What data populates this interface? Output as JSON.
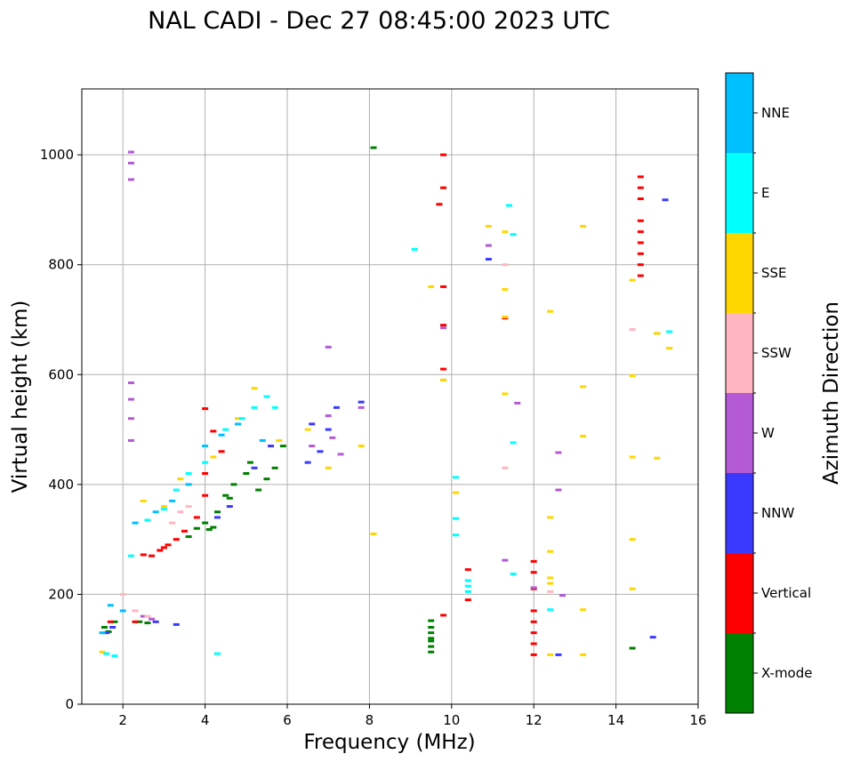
{
  "chart_data": {
    "type": "scatter",
    "title": "NAL CADI - Dec 27 08:45:00 2023 UTC",
    "xlabel": "Frequency (MHz)",
    "ylabel": "Virtual height (km)",
    "xlim": [
      1,
      16
    ],
    "ylim": [
      0,
      1120
    ],
    "xticks": [
      2,
      4,
      6,
      8,
      10,
      12,
      14,
      16
    ],
    "yticks": [
      0,
      200,
      400,
      600,
      800,
      1000
    ],
    "grid": true,
    "colorbar": {
      "label": "Azimuth Direction",
      "categories": [
        {
          "name": "X-mode",
          "color": "#008000"
        },
        {
          "name": "Vertical",
          "color": "#ff0000"
        },
        {
          "name": "NNW",
          "color": "#3a3aff"
        },
        {
          "name": "W",
          "color": "#b35ad4"
        },
        {
          "name": "SSW",
          "color": "#ffb6c1"
        },
        {
          "name": "SSE",
          "color": "#ffd700"
        },
        {
          "name": "E",
          "color": "#00ffff"
        },
        {
          "name": "NNE",
          "color": "#00bfff"
        }
      ]
    },
    "series": [
      {
        "name": "X-mode",
        "points": [
          [
            1.55,
            140
          ],
          [
            1.65,
            132
          ],
          [
            1.8,
            150
          ],
          [
            2.4,
            150
          ],
          [
            2.6,
            148
          ],
          [
            3.6,
            305
          ],
          [
            3.8,
            320
          ],
          [
            4.0,
            330
          ],
          [
            4.1,
            318
          ],
          [
            4.2,
            322
          ],
          [
            4.3,
            350
          ],
          [
            4.5,
            380
          ],
          [
            4.6,
            375
          ],
          [
            4.7,
            400
          ],
          [
            5.0,
            420
          ],
          [
            5.1,
            440
          ],
          [
            5.3,
            390
          ],
          [
            5.5,
            410
          ],
          [
            5.7,
            430
          ],
          [
            5.9,
            470
          ],
          [
            8.1,
            1013
          ],
          [
            9.5,
            95
          ],
          [
            9.5,
            105
          ],
          [
            9.5,
            115
          ],
          [
            9.5,
            120
          ],
          [
            9.5,
            130
          ],
          [
            9.5,
            140
          ],
          [
            9.5,
            152
          ],
          [
            14.4,
            102
          ],
          [
            15.0,
            675
          ]
        ]
      },
      {
        "name": "Vertical",
        "points": [
          [
            1.7,
            150
          ],
          [
            2.3,
            150
          ],
          [
            2.5,
            272
          ],
          [
            2.7,
            270
          ],
          [
            2.9,
            280
          ],
          [
            3.0,
            285
          ],
          [
            3.1,
            290
          ],
          [
            3.3,
            300
          ],
          [
            3.5,
            315
          ],
          [
            3.8,
            340
          ],
          [
            4.0,
            380
          ],
          [
            4.0,
            420
          ],
          [
            4.0,
            538
          ],
          [
            4.2,
            497
          ],
          [
            4.4,
            460
          ],
          [
            9.8,
            1000
          ],
          [
            9.8,
            940
          ],
          [
            9.7,
            910
          ],
          [
            9.8,
            760
          ],
          [
            9.8,
            690
          ],
          [
            9.8,
            610
          ],
          [
            9.8,
            590
          ],
          [
            9.8,
            162
          ],
          [
            10.4,
            190
          ],
          [
            10.4,
            245
          ],
          [
            11.3,
            703
          ],
          [
            12.0,
            90
          ],
          [
            12.0,
            110
          ],
          [
            12.0,
            130
          ],
          [
            12.0,
            150
          ],
          [
            12.0,
            170
          ],
          [
            12.0,
            210
          ],
          [
            12.0,
            240
          ],
          [
            12.0,
            260
          ],
          [
            14.6,
            780
          ],
          [
            14.6,
            800
          ],
          [
            14.6,
            820
          ],
          [
            14.6,
            840
          ],
          [
            14.6,
            860
          ],
          [
            14.6,
            880
          ],
          [
            14.6,
            920
          ],
          [
            14.6,
            940
          ],
          [
            14.6,
            960
          ]
        ]
      },
      {
        "name": "NNW",
        "points": [
          [
            1.6,
            130
          ],
          [
            1.75,
            140
          ],
          [
            2.8,
            150
          ],
          [
            3.3,
            145
          ],
          [
            4.3,
            340
          ],
          [
            4.6,
            360
          ],
          [
            5.2,
            430
          ],
          [
            5.6,
            470
          ],
          [
            6.5,
            440
          ],
          [
            6.6,
            510
          ],
          [
            6.8,
            460
          ],
          [
            7.0,
            500
          ],
          [
            7.2,
            540
          ],
          [
            7.8,
            550
          ],
          [
            10.9,
            810
          ],
          [
            12.6,
            90
          ],
          [
            15.2,
            918
          ],
          [
            14.9,
            122
          ]
        ]
      },
      {
        "name": "W",
        "points": [
          [
            2.2,
            480
          ],
          [
            2.2,
            520
          ],
          [
            2.2,
            555
          ],
          [
            2.2,
            585
          ],
          [
            2.2,
            955
          ],
          [
            2.2,
            985
          ],
          [
            2.2,
            1005
          ],
          [
            2.5,
            160
          ],
          [
            2.7,
            155
          ],
          [
            6.6,
            470
          ],
          [
            7.0,
            525
          ],
          [
            7.1,
            485
          ],
          [
            7.3,
            455
          ],
          [
            7.8,
            540
          ],
          [
            7.0,
            650
          ],
          [
            9.8,
            685
          ],
          [
            10.9,
            835
          ],
          [
            11.3,
            262
          ],
          [
            11.6,
            548
          ],
          [
            12.0,
            212
          ],
          [
            12.6,
            458
          ],
          [
            12.6,
            390
          ],
          [
            12.7,
            198
          ]
        ]
      },
      {
        "name": "SSW",
        "points": [
          [
            2.0,
            200
          ],
          [
            2.3,
            170
          ],
          [
            2.6,
            160
          ],
          [
            3.2,
            330
          ],
          [
            3.4,
            350
          ],
          [
            3.6,
            360
          ],
          [
            11.3,
            800
          ],
          [
            11.3,
            430
          ],
          [
            12.4,
            205
          ],
          [
            14.4,
            682
          ]
        ]
      },
      {
        "name": "SSE",
        "points": [
          [
            1.5,
            95
          ],
          [
            2.5,
            370
          ],
          [
            3.0,
            360
          ],
          [
            3.4,
            410
          ],
          [
            4.2,
            450
          ],
          [
            4.8,
            520
          ],
          [
            5.2,
            575
          ],
          [
            5.8,
            480
          ],
          [
            6.5,
            500
          ],
          [
            7.0,
            430
          ],
          [
            7.8,
            470
          ],
          [
            8.1,
            310
          ],
          [
            9.5,
            760
          ],
          [
            9.8,
            590
          ],
          [
            10.1,
            385
          ],
          [
            10.9,
            870
          ],
          [
            11.3,
            860
          ],
          [
            11.3,
            755
          ],
          [
            11.3,
            705
          ],
          [
            11.3,
            565
          ],
          [
            12.4,
            715
          ],
          [
            12.4,
            340
          ],
          [
            12.4,
            278
          ],
          [
            12.4,
            230
          ],
          [
            12.4,
            220
          ],
          [
            12.4,
            90
          ],
          [
            13.2,
            870
          ],
          [
            13.2,
            578
          ],
          [
            13.2,
            488
          ],
          [
            13.2,
            172
          ],
          [
            13.2,
            90
          ],
          [
            14.4,
            772
          ],
          [
            14.4,
            598
          ],
          [
            14.4,
            450
          ],
          [
            14.4,
            300
          ],
          [
            14.4,
            210
          ],
          [
            15.0,
            675
          ],
          [
            15.0,
            448
          ],
          [
            15.3,
            648
          ]
        ]
      },
      {
        "name": "E",
        "points": [
          [
            1.6,
            92
          ],
          [
            1.8,
            88
          ],
          [
            2.2,
            270
          ],
          [
            2.6,
            335
          ],
          [
            3.0,
            355
          ],
          [
            3.3,
            390
          ],
          [
            3.6,
            420
          ],
          [
            4.0,
            440
          ],
          [
            4.3,
            92
          ],
          [
            4.5,
            500
          ],
          [
            4.9,
            520
          ],
          [
            5.2,
            540
          ],
          [
            5.5,
            560
          ],
          [
            5.7,
            540
          ],
          [
            9.1,
            828
          ],
          [
            10.1,
            413
          ],
          [
            10.1,
            338
          ],
          [
            10.1,
            308
          ],
          [
            10.4,
            225
          ],
          [
            10.4,
            215
          ],
          [
            10.4,
            205
          ],
          [
            11.4,
            908
          ],
          [
            11.5,
            855
          ],
          [
            11.5,
            476
          ],
          [
            11.5,
            237
          ],
          [
            12.4,
            172
          ],
          [
            15.3,
            678
          ]
        ]
      },
      {
        "name": "NNE",
        "points": [
          [
            1.5,
            130
          ],
          [
            1.7,
            180
          ],
          [
            2.0,
            170
          ],
          [
            2.3,
            330
          ],
          [
            2.8,
            350
          ],
          [
            3.2,
            370
          ],
          [
            3.6,
            400
          ],
          [
            4.0,
            470
          ],
          [
            4.4,
            490
          ],
          [
            4.8,
            510
          ],
          [
            5.4,
            480
          ]
        ]
      }
    ]
  }
}
